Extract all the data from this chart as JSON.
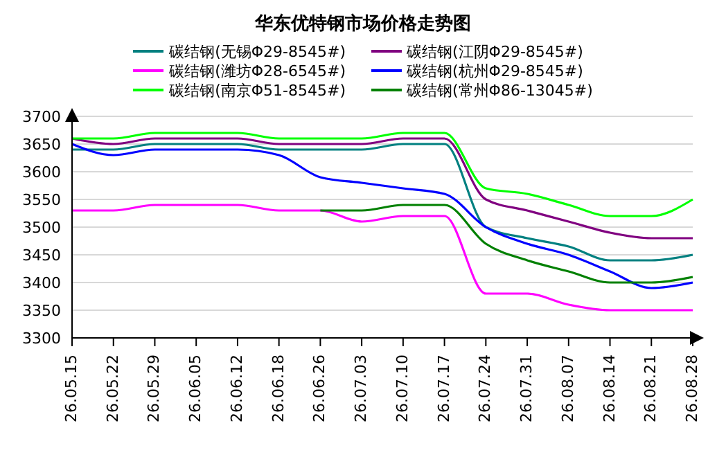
{
  "chart_data": {
    "type": "line",
    "title": "华东优特钢市场价格走势图",
    "categories": [
      "26.05.15",
      "26.05.22",
      "26.05.29",
      "26.06.05",
      "26.06.12",
      "26.06.18",
      "26.06.26",
      "26.07.03",
      "26.07.10",
      "26.07.17",
      "26.07.24",
      "26.07.31",
      "26.08.07",
      "26.08.14",
      "26.08.21",
      "26.08.28"
    ],
    "series": [
      {
        "name": "碳结钢(无锡Φ29-8545#)",
        "color": "#008080",
        "values": [
          3640,
          3640,
          3650,
          3650,
          3650,
          3640,
          3640,
          3640,
          3650,
          3650,
          3500,
          3480,
          3465,
          3440,
          3440,
          3450
        ]
      },
      {
        "name": "碳结钢(江阴Φ29-8545#)",
        "color": "#800080",
        "values": [
          3660,
          3650,
          3660,
          3660,
          3660,
          3650,
          3650,
          3650,
          3660,
          3660,
          3550,
          3530,
          3510,
          3490,
          3480,
          3480
        ]
      },
      {
        "name": "碳结钢(潍坊Φ28-6545#)",
        "color": "#ff00ff",
        "values": [
          3530,
          3530,
          3540,
          3540,
          3540,
          3530,
          3530,
          3510,
          3520,
          3520,
          3380,
          3380,
          3360,
          3350,
          3350,
          3350
        ]
      },
      {
        "name": "碳结钢(杭州Φ29-8545#)",
        "color": "#0000ff",
        "values": [
          3650,
          3630,
          3640,
          3640,
          3640,
          3630,
          3590,
          3580,
          3570,
          3560,
          3500,
          3470,
          3450,
          3420,
          3390,
          3400
        ]
      },
      {
        "name": "碳结钢(南京Φ51-8545#)",
        "color": "#00ff00",
        "values": [
          3660,
          3660,
          3670,
          3670,
          3670,
          3660,
          3660,
          3660,
          3670,
          3670,
          3570,
          3560,
          3540,
          3520,
          3520,
          3550
        ]
      },
      {
        "name": "碳结钢(常州Φ86-13045#)",
        "color": "#008000",
        "values": [
          null,
          null,
          null,
          null,
          null,
          null,
          3530,
          3530,
          3540,
          3540,
          3470,
          3440,
          3420,
          3400,
          3400,
          3410
        ]
      }
    ],
    "ylim": [
      3300,
      3700
    ],
    "yticks": [
      3300,
      3350,
      3400,
      3450,
      3500,
      3550,
      3600,
      3650,
      3700
    ],
    "grid": "y",
    "legend": "top",
    "marker": "none",
    "line_style": "solid"
  }
}
